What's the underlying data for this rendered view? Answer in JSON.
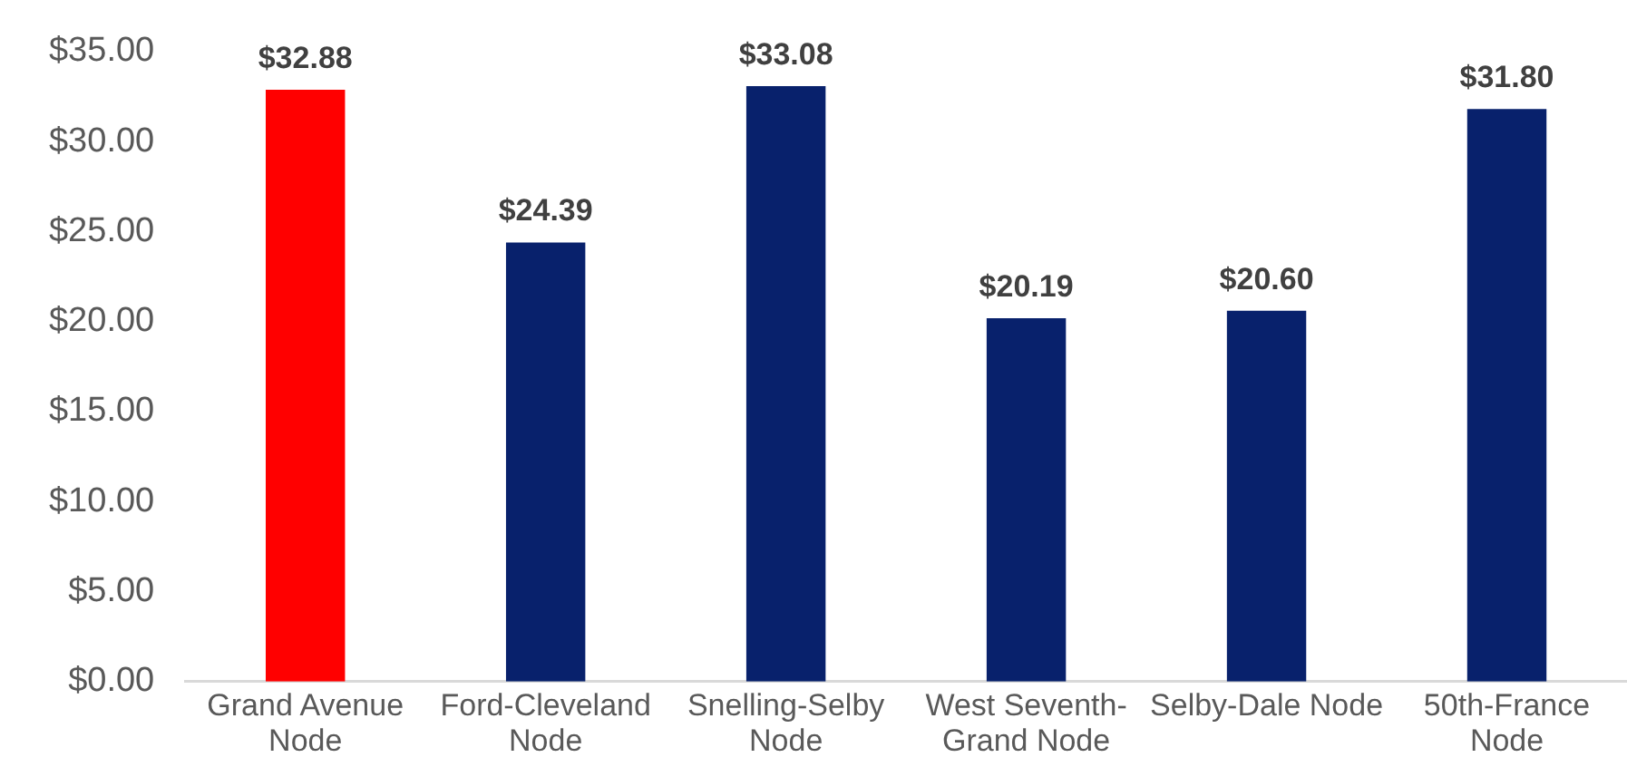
{
  "chart_data": {
    "type": "bar",
    "categories": [
      "Grand Avenue Node",
      "Ford-Cleveland Node",
      "Snelling-Selby Node",
      "West Seventh-Grand Node",
      "Selby-Dale Node",
      "50th-France Node"
    ],
    "values": [
      32.88,
      24.39,
      33.08,
      20.19,
      20.6,
      31.8
    ],
    "colors": [
      "#ff0000",
      "#08216c",
      "#08216c",
      "#08216c",
      "#08216c",
      "#08216c"
    ],
    "value_labels": [
      "$32.88",
      "$24.39",
      "$33.08",
      "$20.19",
      "$20.60",
      "$31.80"
    ],
    "ylim": [
      0,
      35
    ],
    "yticks": [
      {
        "value": 0,
        "label": "$0.00"
      },
      {
        "value": 5,
        "label": "$5.00"
      },
      {
        "value": 10,
        "label": "$10.00"
      },
      {
        "value": 15,
        "label": "$15.00"
      },
      {
        "value": 20,
        "label": "$20.00"
      },
      {
        "value": 25,
        "label": "$25.00"
      },
      {
        "value": 30,
        "label": "$30.00"
      },
      {
        "value": 35,
        "label": "$35.00"
      }
    ],
    "grid": false,
    "legend": false
  }
}
